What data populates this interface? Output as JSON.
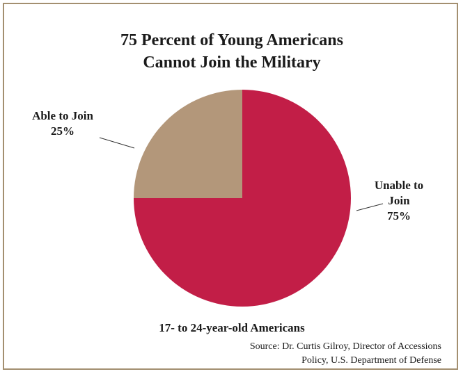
{
  "chart_data": {
    "type": "pie",
    "title_lines": [
      "75 Percent of Young Americans",
      "Cannot Join the Military"
    ],
    "subtitle": "17- to 24-year-old Americans",
    "slices": [
      {
        "label_lines": [
          "Unable to",
          "Join",
          "75%"
        ],
        "value": 75,
        "color": "#c21e47"
      },
      {
        "label_lines": [
          "Able to Join",
          "25%"
        ],
        "value": 25,
        "color": "#b3977a"
      }
    ],
    "source_lines": [
      "Source: Dr. Curtis Gilroy, Director of Accessions",
      "Policy, U.S. Department of Defense"
    ]
  },
  "colors": {
    "border": "#a38f70",
    "leader_line": "#333333"
  }
}
